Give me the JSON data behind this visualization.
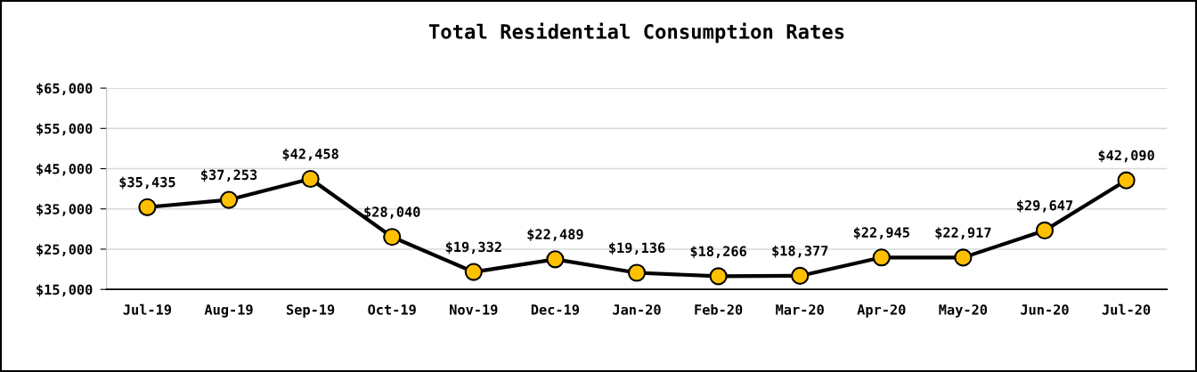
{
  "chart_data": {
    "type": "line",
    "title": "Total Residential Consumption Rates",
    "categories": [
      "Jul-19",
      "Aug-19",
      "Sep-19",
      "Oct-19",
      "Nov-19",
      "Dec-19",
      "Jan-20",
      "Feb-20",
      "Mar-20",
      "Apr-20",
      "May-20",
      "Jun-20",
      "Jul-20"
    ],
    "series": [
      {
        "color": "#000000",
        "colors": [
          "#ffc000",
          "#ffc000",
          "#ffc000",
          "#ffc000",
          "#ffc000",
          "#ffc000",
          "#ffc000",
          "#ffc000",
          "#ffc000",
          "#ffc000",
          "#ffc000",
          "#ffc000",
          "#ffc000"
        ],
        "values": [
          35435,
          37253,
          42458,
          28040,
          19332,
          22489,
          19136,
          18266,
          18377,
          22945,
          22917,
          29647,
          42090
        ]
      }
    ],
    "value_labels": [
      "$35,435",
      "$37,253",
      "$42,458",
      "$28,040",
      "$19,332",
      "$22,489",
      "$19,136",
      "$18,266",
      "$18,377",
      "$22,945",
      "$22,917",
      "$29,647",
      "$42,090"
    ],
    "ylim": [
      15000,
      65000
    ],
    "yticks": [
      {
        "value": 15000,
        "label": "$15,000"
      },
      {
        "value": 25000,
        "label": "$25,000"
      },
      {
        "value": 35000,
        "label": "$35,000"
      },
      {
        "value": 45000,
        "label": "$45,000"
      },
      {
        "value": 55000,
        "label": "$55,000"
      },
      {
        "value": 65000,
        "label": "$65,000"
      }
    ],
    "grid": "y",
    "legend": false,
    "marker": "circle",
    "line_style": "solid"
  }
}
